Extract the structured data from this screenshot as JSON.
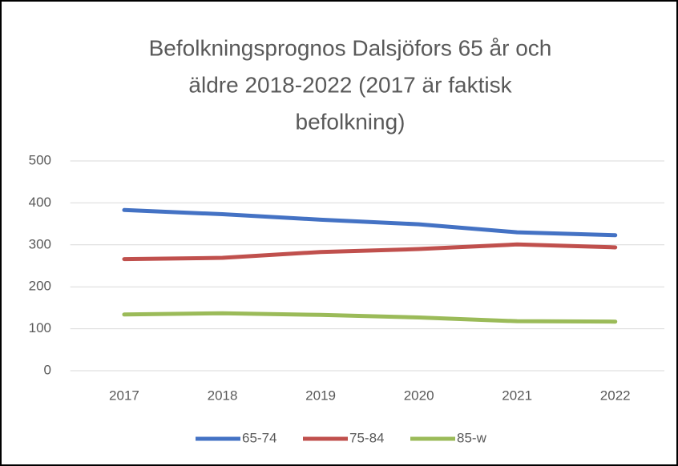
{
  "chart_data": {
    "type": "line",
    "title": [
      "Befolkningsprognos Dalsjöfors 65 år och",
      "äldre 2018-2022 (2017 är faktisk",
      "befolkning)"
    ],
    "categories": [
      "2017",
      "2018",
      "2019",
      "2020",
      "2021",
      "2022"
    ],
    "series": [
      {
        "name": "65-74",
        "color": "#4472c4",
        "values": [
          383,
          373,
          360,
          349,
          330,
          323
        ]
      },
      {
        "name": "75-84",
        "color": "#c0504d",
        "values": [
          266,
          269,
          283,
          290,
          301,
          294
        ]
      },
      {
        "name": "85-w",
        "color": "#9bbb59",
        "values": [
          134,
          137,
          133,
          127,
          118,
          117
        ]
      }
    ],
    "ylim": [
      0,
      500
    ],
    "yticks": [
      0,
      100,
      200,
      300,
      400,
      500
    ],
    "grid": true,
    "legend": "bottom"
  }
}
